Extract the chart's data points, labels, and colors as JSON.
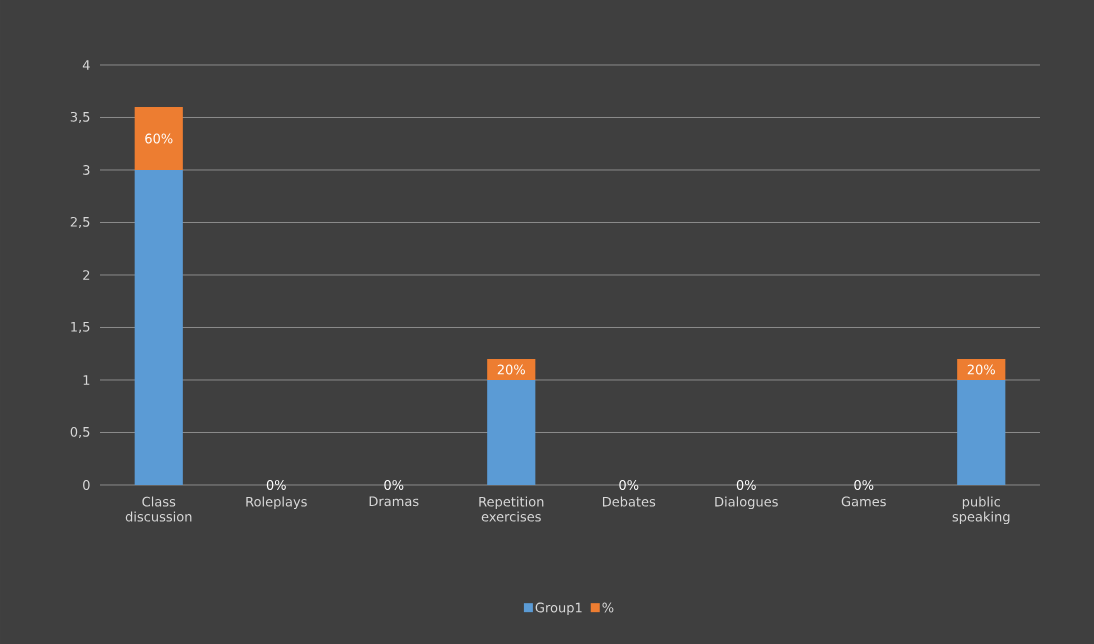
{
  "chart_data": {
    "type": "bar",
    "stacked": true,
    "categories": [
      "Class discussion",
      "Roleplays",
      "Dramas",
      "Repetition exercises",
      "Debates",
      "Dialogues",
      "Games",
      "public speaking"
    ],
    "series": [
      {
        "name": "Group1",
        "color": "#5b9bd5",
        "values": [
          3,
          0,
          0,
          1,
          0,
          0,
          0,
          1
        ]
      },
      {
        "name": "%",
        "color": "#ed7d31",
        "values": [
          0.6,
          0,
          0,
          0.2,
          0,
          0,
          0,
          0.2
        ],
        "value_labels": [
          "60%",
          "0%",
          "0%",
          "20%",
          "0%",
          "0%",
          "0%",
          "20%"
        ]
      }
    ],
    "ylim": [
      0,
      4
    ],
    "yticks": [
      0,
      {
        "value": 0.5,
        "label": "0,5"
      },
      1,
      {
        "value": 1.5,
        "label": "1,5"
      },
      2,
      {
        "value": 2.5,
        "label": "2,5"
      },
      3,
      {
        "value": 3.5,
        "label": "3,5"
      },
      4
    ],
    "grid": "y",
    "legend": "bottom"
  }
}
